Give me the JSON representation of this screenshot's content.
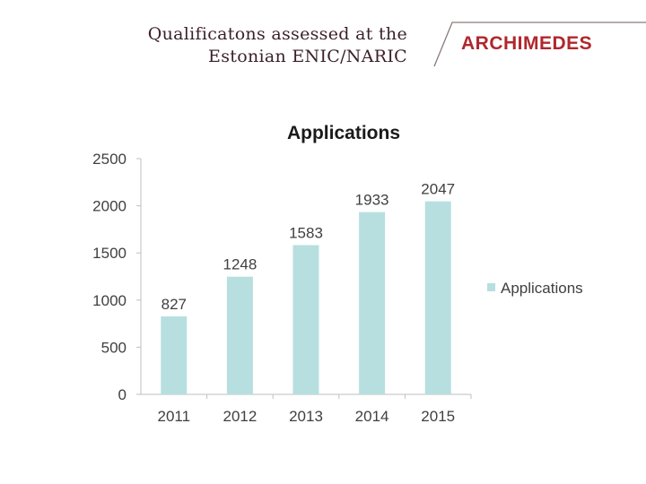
{
  "header": {
    "title_line1": "Qualificatons assessed at the",
    "title_line2": "Estonian ENIC/NARIC",
    "logo_text": "ARCHIMEDES"
  },
  "colors": {
    "bar": "#b7dfe0",
    "logo": "#b0272d",
    "title_text": "#3a1f2a"
  },
  "chart_data": {
    "type": "bar",
    "title": "Applications",
    "xlabel": "",
    "ylabel": "",
    "categories": [
      "2011",
      "2012",
      "2013",
      "2014",
      "2015"
    ],
    "series": [
      {
        "name": "Applications",
        "values": [
          827,
          1248,
          1583,
          1933,
          2047
        ]
      }
    ],
    "ylim": [
      0,
      2500
    ],
    "yticks": [
      "0",
      "500",
      "1000",
      "1500",
      "2000",
      "2500"
    ],
    "grid": false,
    "legend_position": "right",
    "data_labels": true
  }
}
